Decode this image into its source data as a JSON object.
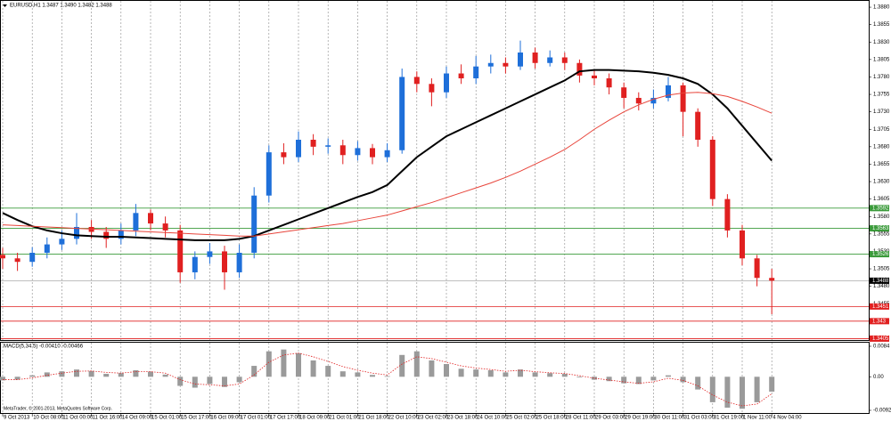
{
  "chart_data": [
    {
      "type": "candlestick",
      "title": "EURUSD,H1  1.3487 1.3490 1.3482 1.3488",
      "categories": [
        "9 Oct 2013",
        null,
        "10 Oct 08:00",
        null,
        "11 Oct 00:00",
        null,
        "11 Oct 16:00",
        null,
        "14 Oct 09:00",
        null,
        "15 Oct 01:00",
        null,
        "15 Oct 17:00",
        null,
        "16 Oct 09:00",
        null,
        "17 Oct 01:00",
        null,
        "17 Oct 17:00",
        null,
        "18 Oct 09:00",
        null,
        "21 Oct 01:00",
        null,
        "21 Oct 18:00",
        null,
        "22 Oct 10:00",
        null,
        "23 Oct 02:00",
        null,
        "23 Oct 18:00",
        null,
        "24 Oct 10:00",
        null,
        "25 Oct 02:00",
        null,
        "25 Oct 18:00",
        null,
        "28 Oct 11:00",
        null,
        "29 Oct 03:00",
        null,
        "29 Oct 19:00",
        null,
        "30 Oct 11:00",
        null,
        "31 Oct 03:00",
        null,
        "31 Oct 19:00",
        null,
        "1 Nov 11:00",
        null,
        "4 Nov 04:00"
      ],
      "open": [
        1.3525,
        1.352,
        1.3515,
        1.3528,
        1.354,
        1.3548,
        1.3565,
        1.3558,
        1.3548,
        1.356,
        1.3585,
        1.357,
        1.356,
        1.35,
        1.3522,
        1.353,
        1.35,
        1.3528,
        1.361,
        1.3672,
        1.3665,
        1.369,
        1.368,
        1.3682,
        1.3668,
        1.3678,
        1.3665,
        1.3675,
        1.378,
        1.377,
        1.3758,
        1.3785,
        1.3778,
        1.3795,
        1.38,
        1.3795,
        1.3815,
        1.38,
        1.3808,
        1.38,
        1.3782,
        1.3778,
        1.3765,
        1.375,
        1.3742,
        1.375,
        1.3768,
        1.373,
        1.369,
        1.3605,
        1.356,
        1.352,
        1.3492
      ],
      "high": [
        1.3535,
        1.3528,
        1.3536,
        1.355,
        1.356,
        1.3585,
        1.3575,
        1.3565,
        1.357,
        1.3598,
        1.359,
        1.358,
        1.3568,
        1.353,
        1.3542,
        1.3538,
        1.354,
        1.3622,
        1.3682,
        1.3685,
        1.3702,
        1.3698,
        1.3692,
        1.369,
        1.3688,
        1.3684,
        1.3685,
        1.3792,
        1.3788,
        1.3778,
        1.3795,
        1.3798,
        1.381,
        1.3812,
        1.3808,
        1.3832,
        1.3822,
        1.3818,
        1.3815,
        1.3805,
        1.379,
        1.3785,
        1.3772,
        1.3758,
        1.3762,
        1.378,
        1.3772,
        1.3735,
        1.3695,
        1.3612,
        1.3568,
        1.3525,
        1.3505
      ],
      "low": [
        1.3505,
        1.3502,
        1.3508,
        1.352,
        1.3532,
        1.354,
        1.3548,
        1.3535,
        1.354,
        1.3552,
        1.356,
        1.355,
        1.3485,
        1.349,
        1.3512,
        1.3475,
        1.3492,
        1.352,
        1.36,
        1.3655,
        1.3658,
        1.3668,
        1.367,
        1.3655,
        1.366,
        1.3655,
        1.3658,
        1.367,
        1.3758,
        1.3738,
        1.375,
        1.377,
        1.377,
        1.3785,
        1.3785,
        1.379,
        1.3792,
        1.3795,
        1.379,
        1.3772,
        1.3768,
        1.3755,
        1.3735,
        1.3732,
        1.3735,
        1.3745,
        1.3695,
        1.368,
        1.3595,
        1.355,
        1.351,
        1.348,
        1.344
      ],
      "close": [
        1.352,
        1.3515,
        1.3528,
        1.354,
        1.3548,
        1.3565,
        1.3558,
        1.3548,
        1.356,
        1.3585,
        1.357,
        1.356,
        1.35,
        1.3522,
        1.353,
        1.35,
        1.3528,
        1.361,
        1.3672,
        1.3665,
        1.369,
        1.368,
        1.3682,
        1.3668,
        1.3678,
        1.3665,
        1.3675,
        1.378,
        1.377,
        1.3758,
        1.3785,
        1.3778,
        1.3795,
        1.38,
        1.3795,
        1.3815,
        1.38,
        1.3808,
        1.38,
        1.3782,
        1.3778,
        1.3765,
        1.375,
        1.3742,
        1.375,
        1.3768,
        1.373,
        1.369,
        1.3605,
        1.356,
        1.352,
        1.3492,
        1.3488
      ],
      "up_color": "#1e6fd9",
      "down_color": "#e02020",
      "series": [
        {
          "color": "#000000",
          "values": [
            1.3585,
            1.3575,
            1.3566,
            1.356,
            1.3556,
            1.3553,
            1.3552,
            1.3551,
            1.3551,
            1.355,
            1.3549,
            1.3548,
            1.3547,
            1.3546,
            1.3546,
            1.3546,
            1.3548,
            1.3552,
            1.356,
            1.3568,
            1.3576,
            1.3584,
            1.3592,
            1.36,
            1.3608,
            1.3615,
            1.3625,
            1.3645,
            1.3665,
            1.368,
            1.3695,
            1.3705,
            1.3715,
            1.3725,
            1.3735,
            1.3745,
            1.3755,
            1.3765,
            1.3775,
            1.3788,
            1.379,
            1.379,
            1.3789,
            1.3788,
            1.3786,
            1.3783,
            1.3778,
            1.377,
            1.3755,
            1.3735,
            1.371,
            1.3685,
            1.366
          ]
        },
        {
          "color": "#e8443a",
          "values": [
            1.3568,
            1.3567,
            1.3566,
            1.3565,
            1.3564,
            1.3563,
            1.3562,
            1.3561,
            1.356,
            1.3559,
            1.3558,
            1.3557,
            1.3556,
            1.3555,
            1.3554,
            1.3553,
            1.3552,
            1.3552,
            1.3555,
            1.3558,
            1.3561,
            1.3564,
            1.3567,
            1.357,
            1.3574,
            1.3578,
            1.3582,
            1.3588,
            1.3594,
            1.36,
            1.3607,
            1.3614,
            1.3621,
            1.3628,
            1.3636,
            1.3645,
            1.3655,
            1.3665,
            1.3676,
            1.369,
            1.3705,
            1.3718,
            1.373,
            1.374,
            1.3748,
            1.3754,
            1.3757,
            1.3758,
            1.3756,
            1.3752,
            1.3745,
            1.3737,
            1.3728
          ]
        }
      ],
      "levels": [
        {
          "value": 1.3592,
          "color": "#3a9a3a"
        },
        {
          "value": 1.3563,
          "color": "#3a9a3a"
        },
        {
          "value": 1.3526,
          "color": "#3a9a3a"
        },
        {
          "value": 1.3451,
          "color": "#e02020"
        },
        {
          "value": 1.343,
          "color": "#e02020"
        },
        {
          "value": 1.3405,
          "color": "#e02020"
        }
      ],
      "current_price": 1.3488,
      "ylim": [
        1.3403,
        1.3889
      ],
      "yticks": [
        {
          "value": 1.388,
          "label": "1.3880"
        },
        1.3855,
        {
          "value": 1.383,
          "label": "1.3830"
        },
        1.3805,
        {
          "value": 1.378,
          "label": "1.3780"
        },
        1.3755,
        {
          "value": 1.373,
          "label": "1.3730"
        },
        1.3705,
        {
          "value": 1.368,
          "label": "1.3680"
        },
        1.3655,
        {
          "value": 1.363,
          "label": "1.3630"
        },
        1.3605,
        {
          "value": 1.358,
          "label": "1.3580"
        },
        1.3555,
        {
          "value": 1.353,
          "label": "1.3530"
        },
        1.3505,
        {
          "value": 1.348,
          "label": "1.3480"
        },
        1.3455,
        {
          "value": 1.343,
          "label": "1.3430"
        },
        1.3405
      ],
      "grid": true
    },
    {
      "type": "macd",
      "title": "MACD(5,34,5) -0.00410 -0.00466",
      "values": [
        -0.001,
        -0.0008,
        0.0004,
        0.0012,
        0.0015,
        0.002,
        0.0016,
        0.0008,
        0.001,
        0.0018,
        0.0014,
        0.0006,
        -0.0025,
        -0.003,
        -0.002,
        -0.0028,
        -0.0015,
        0.003,
        0.007,
        0.0075,
        0.0065,
        0.0045,
        0.003,
        0.0015,
        0.0012,
        0.0005,
        0.0002,
        0.006,
        0.007,
        0.0045,
        0.0035,
        0.0022,
        0.002,
        0.0018,
        0.0012,
        0.002,
        0.0012,
        0.001,
        0.0008,
        -0.0002,
        -0.0008,
        -0.0012,
        -0.0018,
        -0.002,
        -0.001,
        0.0004,
        -0.0015,
        -0.0035,
        -0.007,
        -0.0085,
        -0.0088,
        -0.007,
        -0.0041
      ],
      "signal": [
        -0.0008,
        -0.0008,
        -0.0003,
        0.0004,
        0.001,
        0.0015,
        0.0016,
        0.0012,
        0.001,
        0.0014,
        0.0014,
        0.001,
        -0.0008,
        -0.002,
        -0.0022,
        -0.0025,
        -0.002,
        0.0005,
        0.004,
        0.006,
        0.0065,
        0.0055,
        0.0042,
        0.0028,
        0.0018,
        0.001,
        0.0005,
        0.0035,
        0.0055,
        0.005,
        0.004,
        0.003,
        0.0024,
        0.002,
        0.0015,
        0.0018,
        0.0014,
        0.0011,
        0.0009,
        0.0003,
        -0.0004,
        -0.0009,
        -0.0014,
        -0.0018,
        -0.0014,
        -0.0004,
        -0.001,
        -0.0025,
        -0.005,
        -0.007,
        -0.008,
        -0.0075,
        -0.00466
      ],
      "color": "#9a9a9a",
      "signal_color": "#e02020",
      "ylim": [
        -0.00923,
        0.0084
      ],
      "yticks": [
        0.0084,
        {
          "value": 0,
          "label": "0.00"
        },
        -0.00923
      ]
    }
  ],
  "footer": "MetaTrader, © 2001-2013, MetaQuotes Software Corp."
}
